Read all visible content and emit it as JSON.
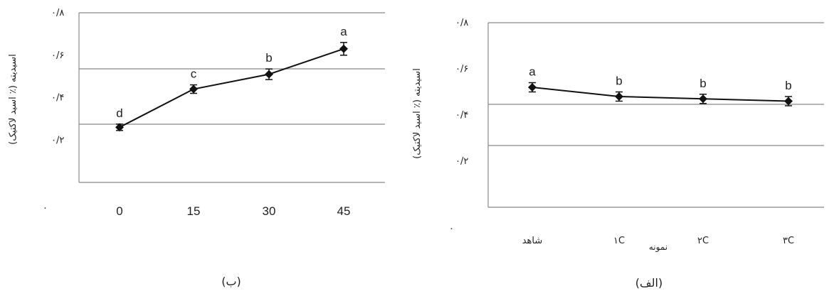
{
  "chart_data": [
    {
      "type": "line",
      "caption": "(ب)",
      "ylabel": "اسیدیته (٪ اسید لاکتیک)",
      "origin_label": "۰",
      "y_ticks": [
        {
          "value": 0.2,
          "label": "۰/۲"
        },
        {
          "value": 0.4,
          "label": "۰/۴"
        },
        {
          "value": 0.6,
          "label": "۰/۶"
        },
        {
          "value": 0.8,
          "label": "۰/۸"
        }
      ],
      "ylim": [
        0.0,
        0.8
      ],
      "categories": [
        "0",
        "15",
        "30",
        "45"
      ],
      "values": [
        0.26,
        0.44,
        0.51,
        0.63
      ],
      "errors": [
        0.015,
        0.02,
        0.025,
        0.03
      ],
      "letters": [
        "d",
        "c",
        "b",
        "a"
      ]
    },
    {
      "type": "line",
      "caption": "(الف)",
      "ylabel": "اسیدیته (٪ اسید لاکتیک)",
      "xlabel": "نمونه",
      "origin_label": "۰",
      "y_ticks": [
        {
          "value": 0.2,
          "label": "۰/۲"
        },
        {
          "value": 0.4,
          "label": "۰/۴"
        },
        {
          "value": 0.6,
          "label": "۰/۶"
        },
        {
          "value": 0.8,
          "label": "۰/۸"
        }
      ],
      "ylim": [
        0.0,
        0.8
      ],
      "categories": [
        "شاهد",
        "۱C",
        "۲C",
        "۳C"
      ],
      "values": [
        0.52,
        0.48,
        0.47,
        0.46
      ],
      "errors": [
        0.02,
        0.02,
        0.02,
        0.02
      ],
      "letters": [
        "a",
        "b",
        "b",
        "b"
      ]
    }
  ]
}
